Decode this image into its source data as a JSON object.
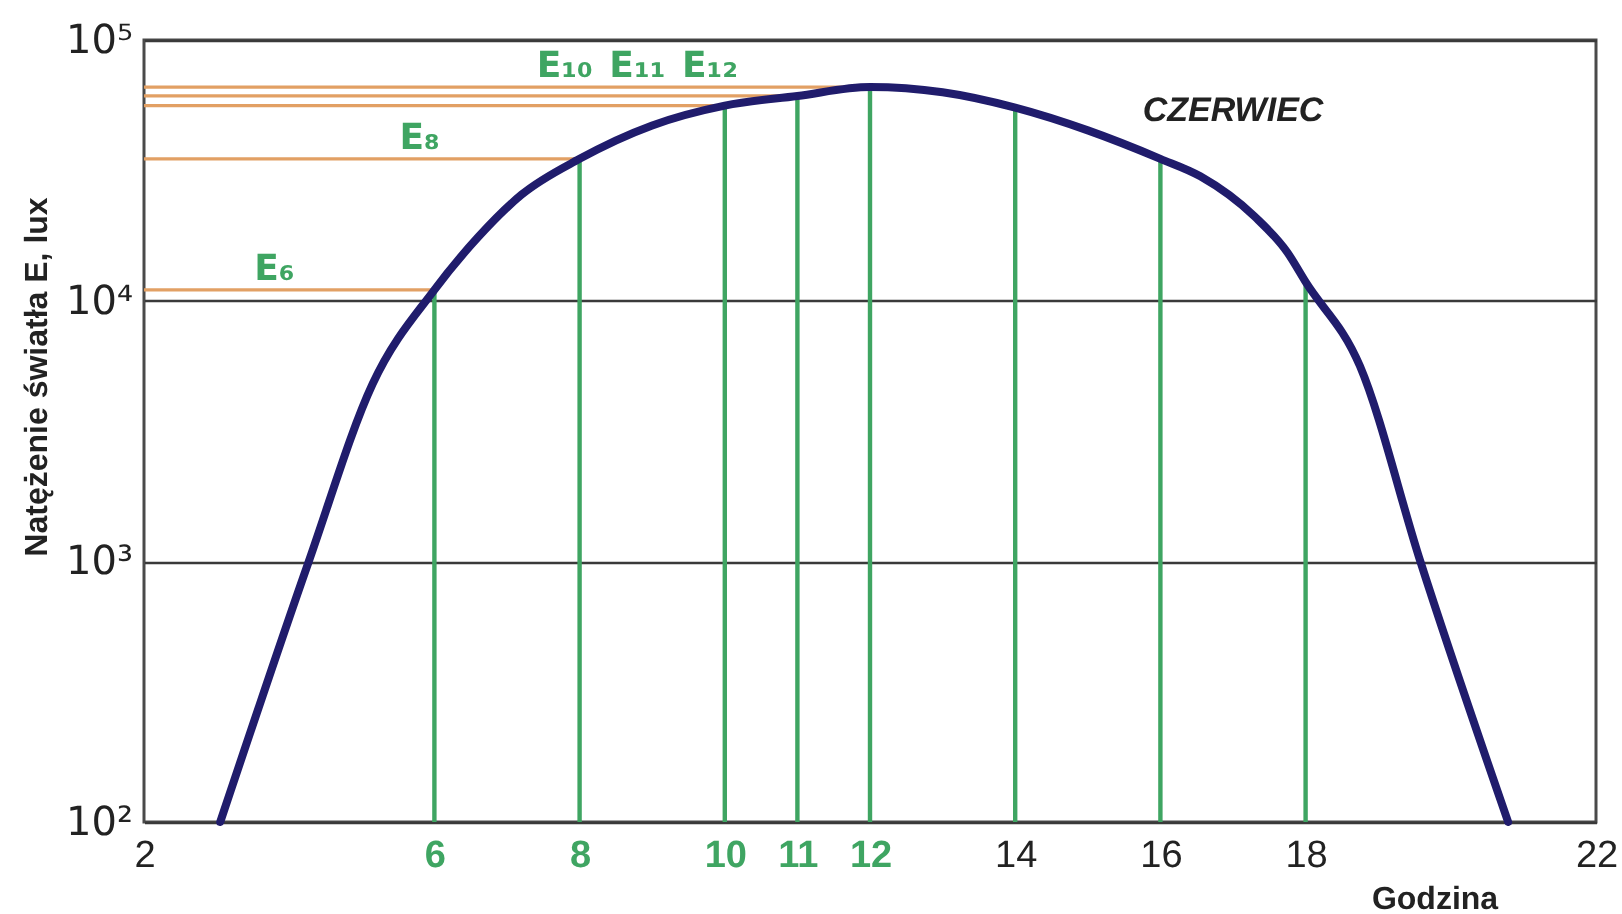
{
  "chart_data": {
    "type": "line",
    "xlabel": "Godzina",
    "ylabel": "Natężenie światła E, lux",
    "log": "y",
    "grid": "y",
    "xlim": [
      2,
      22
    ],
    "xticks": [
      2,
      6,
      8,
      10,
      11,
      12,
      14,
      16,
      18,
      22
    ],
    "ylim": [
      100,
      100000
    ],
    "yticks": [
      {
        "value": 100,
        "label": "10²"
      },
      {
        "value": 1000,
        "label": "10³"
      },
      {
        "value": 10000,
        "label": "10⁴"
      },
      {
        "value": 100000,
        "label": "10⁵"
      }
    ],
    "series": [
      {
        "name": "CZERWIEC",
        "color": "#201c6c",
        "x": [
          3.05,
          4.27,
          5.15,
          6,
          6.6,
          7.2,
          8,
          9,
          10,
          11,
          12,
          13,
          14,
          15,
          16,
          16.55,
          17.3,
          17.75,
          18,
          18.75,
          19.58,
          20.79
        ],
        "values": [
          100,
          1000,
          4800,
          11000,
          17500,
          25500,
          35000,
          47000,
          56000,
          61000,
          66000,
          63000,
          55000,
          45000,
          35000,
          30000,
          21000,
          15300,
          11800,
          5600,
          1000,
          100
        ]
      },
      {
        "type": "bar",
        "color": "#3fa562",
        "x": [
          6,
          8,
          10,
          11,
          12,
          14,
          16,
          18
        ],
        "values": [
          11000,
          35000,
          56000,
          61000,
          66000,
          55000,
          35000,
          11800
        ]
      }
    ],
    "ref_lines": [
      {
        "axis": "y",
        "value": 11000,
        "label": "E₆",
        "color": "#e2a064"
      },
      {
        "axis": "y",
        "value": 35000,
        "label": "E₈",
        "color": "#e2a064"
      },
      {
        "axis": "y",
        "value": 56000,
        "label": "E₁₀",
        "color": "#e2a064"
      },
      {
        "axis": "y",
        "value": 61000,
        "label": "E₁₁",
        "color": "#e2a064"
      },
      {
        "axis": "y",
        "value": 66000,
        "label": "E₁₂",
        "color": "#e2a064"
      }
    ]
  }
}
